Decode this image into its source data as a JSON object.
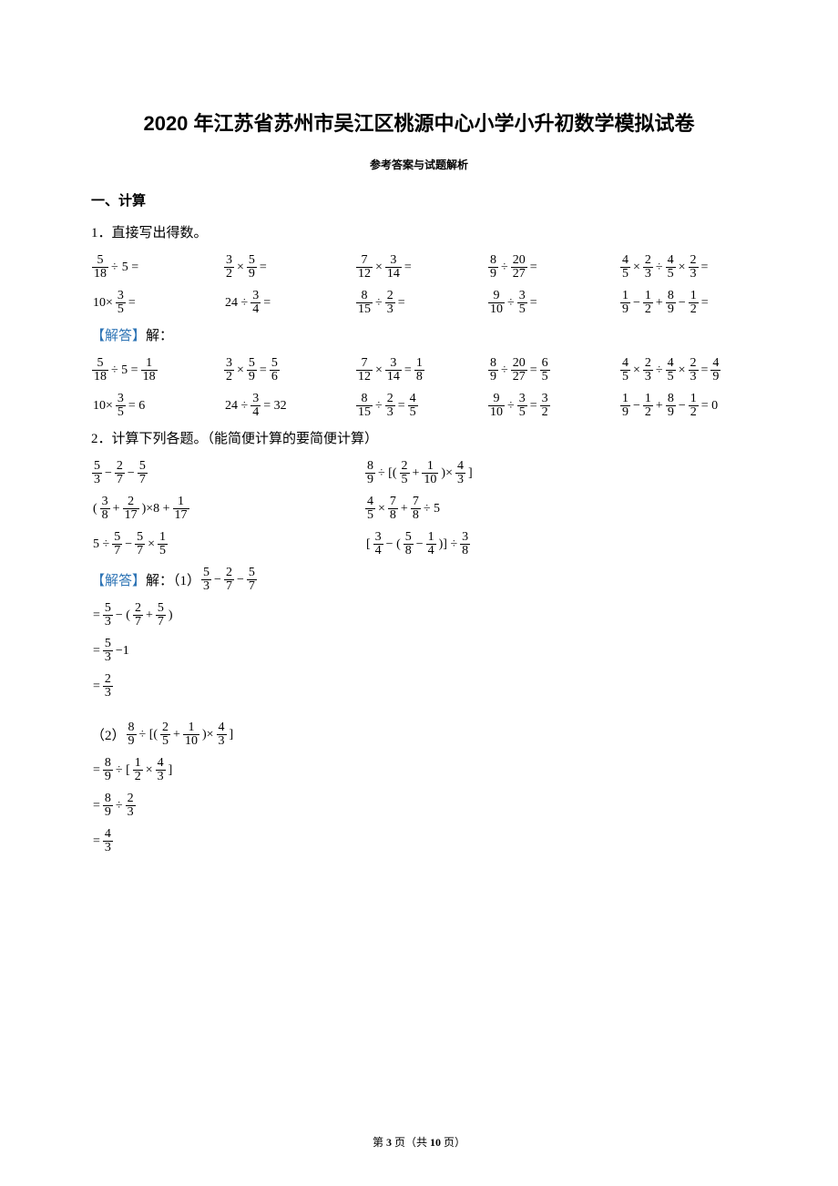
{
  "title": "2020 年江苏省苏州市吴江区桃源中心小学小升初数学模拟试卷",
  "subtitle": "参考答案与试题解析",
  "section1_header": "一、计算",
  "q1_text": "1．直接写出得数。",
  "q1_problems_row1": [
    [
      {
        "f": [
          5,
          18
        ]
      },
      {
        "t": "÷"
      },
      {
        "t": "5 ="
      }
    ],
    [
      {
        "f": [
          3,
          2
        ]
      },
      {
        "t": "×"
      },
      {
        "f": [
          5,
          9
        ]
      },
      {
        "t": "="
      }
    ],
    [
      {
        "f": [
          7,
          12
        ]
      },
      {
        "t": "×"
      },
      {
        "f": [
          3,
          14
        ]
      },
      {
        "t": "="
      }
    ],
    [
      {
        "f": [
          8,
          9
        ]
      },
      {
        "t": "÷"
      },
      {
        "f": [
          20,
          27
        ]
      },
      {
        "t": "="
      }
    ],
    [
      {
        "f": [
          4,
          5
        ]
      },
      {
        "t": "×"
      },
      {
        "f": [
          2,
          3
        ]
      },
      {
        "t": "÷"
      },
      {
        "f": [
          4,
          5
        ]
      },
      {
        "t": "×"
      },
      {
        "f": [
          2,
          3
        ]
      },
      {
        "t": "="
      }
    ]
  ],
  "q1_problems_row2": [
    [
      {
        "t": "10×"
      },
      {
        "f": [
          3,
          5
        ]
      },
      {
        "t": "="
      }
    ],
    [
      {
        "t": "24 ÷"
      },
      {
        "f": [
          3,
          4
        ]
      },
      {
        "t": "="
      }
    ],
    [
      {
        "f": [
          8,
          15
        ]
      },
      {
        "t": "÷"
      },
      {
        "f": [
          2,
          3
        ]
      },
      {
        "t": "="
      }
    ],
    [
      {
        "f": [
          9,
          10
        ]
      },
      {
        "t": "÷"
      },
      {
        "f": [
          3,
          5
        ]
      },
      {
        "t": "="
      }
    ],
    [
      {
        "f": [
          1,
          9
        ]
      },
      {
        "t": "−"
      },
      {
        "f": [
          1,
          2
        ]
      },
      {
        "t": "+"
      },
      {
        "f": [
          8,
          9
        ]
      },
      {
        "t": "−"
      },
      {
        "f": [
          1,
          2
        ]
      },
      {
        "t": "="
      }
    ]
  ],
  "answer_label": "【解答】",
  "answer_text": "解：",
  "q1_answers_row1": [
    [
      {
        "f": [
          5,
          18
        ]
      },
      {
        "t": "÷ 5 ="
      },
      {
        "f": [
          1,
          18
        ]
      }
    ],
    [
      {
        "f": [
          3,
          2
        ]
      },
      {
        "t": "×"
      },
      {
        "f": [
          5,
          9
        ]
      },
      {
        "t": "="
      },
      {
        "f": [
          5,
          6
        ]
      }
    ],
    [
      {
        "f": [
          7,
          12
        ]
      },
      {
        "t": "×"
      },
      {
        "f": [
          3,
          14
        ]
      },
      {
        "t": "="
      },
      {
        "f": [
          1,
          8
        ]
      }
    ],
    [
      {
        "f": [
          8,
          9
        ]
      },
      {
        "t": "÷"
      },
      {
        "f": [
          20,
          27
        ]
      },
      {
        "t": "="
      },
      {
        "f": [
          6,
          5
        ]
      }
    ],
    [
      {
        "f": [
          4,
          5
        ]
      },
      {
        "t": "×"
      },
      {
        "f": [
          2,
          3
        ]
      },
      {
        "t": "÷"
      },
      {
        "f": [
          4,
          5
        ]
      },
      {
        "t": "×"
      },
      {
        "f": [
          2,
          3
        ]
      },
      {
        "t": "="
      },
      {
        "f": [
          4,
          9
        ]
      }
    ]
  ],
  "q1_answers_row2": [
    [
      {
        "t": "10×"
      },
      {
        "f": [
          3,
          5
        ]
      },
      {
        "t": "= 6"
      }
    ],
    [
      {
        "t": "24 ÷"
      },
      {
        "f": [
          3,
          4
        ]
      },
      {
        "t": "= 32"
      }
    ],
    [
      {
        "f": [
          8,
          15
        ]
      },
      {
        "t": "÷"
      },
      {
        "f": [
          2,
          3
        ]
      },
      {
        "t": "="
      },
      {
        "f": [
          4,
          5
        ]
      }
    ],
    [
      {
        "f": [
          9,
          10
        ]
      },
      {
        "t": "÷"
      },
      {
        "f": [
          3,
          5
        ]
      },
      {
        "t": "="
      },
      {
        "f": [
          3,
          2
        ]
      }
    ],
    [
      {
        "f": [
          1,
          9
        ]
      },
      {
        "t": "−"
      },
      {
        "f": [
          1,
          2
        ]
      },
      {
        "t": "+"
      },
      {
        "f": [
          8,
          9
        ]
      },
      {
        "t": "−"
      },
      {
        "f": [
          1,
          2
        ]
      },
      {
        "t": "= 0"
      }
    ]
  ],
  "q2_text": "2．计算下列各题。（能简便计算的要简便计算）",
  "q2_problems_row1": [
    [
      {
        "f": [
          5,
          3
        ]
      },
      {
        "t": "−"
      },
      {
        "f": [
          2,
          7
        ]
      },
      {
        "t": "−"
      },
      {
        "f": [
          5,
          7
        ]
      }
    ],
    [
      {
        "f": [
          8,
          9
        ]
      },
      {
        "t": "÷ [("
      },
      {
        "f": [
          2,
          5
        ]
      },
      {
        "t": "+"
      },
      {
        "f": [
          1,
          10
        ]
      },
      {
        "t": ")×"
      },
      {
        "f": [
          4,
          3
        ]
      },
      {
        "t": "]"
      }
    ]
  ],
  "q2_problems_row2": [
    [
      {
        "t": "("
      },
      {
        "f": [
          3,
          8
        ]
      },
      {
        "t": "+"
      },
      {
        "f": [
          2,
          17
        ]
      },
      {
        "t": ")×8 +"
      },
      {
        "f": [
          1,
          17
        ]
      }
    ],
    [
      {
        "f": [
          4,
          5
        ]
      },
      {
        "t": "×"
      },
      {
        "f": [
          7,
          8
        ]
      },
      {
        "t": "+"
      },
      {
        "f": [
          7,
          8
        ]
      },
      {
        "t": "÷ 5"
      }
    ]
  ],
  "q2_problems_row3": [
    [
      {
        "t": "5 ÷"
      },
      {
        "f": [
          5,
          7
        ]
      },
      {
        "t": "−"
      },
      {
        "f": [
          5,
          7
        ]
      },
      {
        "t": "×"
      },
      {
        "f": [
          1,
          5
        ]
      }
    ],
    [
      {
        "t": "["
      },
      {
        "f": [
          3,
          4
        ]
      },
      {
        "t": "− ("
      },
      {
        "f": [
          5,
          8
        ]
      },
      {
        "t": "−"
      },
      {
        "f": [
          1,
          4
        ]
      },
      {
        "t": ")] ÷"
      },
      {
        "f": [
          3,
          8
        ]
      }
    ]
  ],
  "q2_solution1_header": "解：（1）",
  "q2_solution1_expr": [
    {
      "f": [
        5,
        3
      ]
    },
    {
      "t": "−"
    },
    {
      "f": [
        2,
        7
      ]
    },
    {
      "t": "−"
    },
    {
      "f": [
        5,
        7
      ]
    }
  ],
  "q2_solution1_steps": [
    [
      {
        "t": "="
      },
      {
        "f": [
          5,
          3
        ]
      },
      {
        "t": "− ("
      },
      {
        "f": [
          2,
          7
        ]
      },
      {
        "t": "+"
      },
      {
        "f": [
          5,
          7
        ]
      },
      {
        "t": ")"
      }
    ],
    [
      {
        "t": "="
      },
      {
        "f": [
          5,
          3
        ]
      },
      {
        "t": "−1"
      }
    ],
    [
      {
        "t": "="
      },
      {
        "f": [
          2,
          3
        ]
      }
    ]
  ],
  "q2_solution2_header": "（2）",
  "q2_solution2_expr": [
    {
      "f": [
        8,
        9
      ]
    },
    {
      "t": "÷ [("
    },
    {
      "f": [
        2,
        5
      ]
    },
    {
      "t": "+"
    },
    {
      "f": [
        1,
        10
      ]
    },
    {
      "t": ")×"
    },
    {
      "f": [
        4,
        3
      ]
    },
    {
      "t": "]"
    }
  ],
  "q2_solution2_steps": [
    [
      {
        "t": "="
      },
      {
        "f": [
          8,
          9
        ]
      },
      {
        "t": "÷ ["
      },
      {
        "f": [
          1,
          2
        ]
      },
      {
        "t": "×"
      },
      {
        "f": [
          4,
          3
        ]
      },
      {
        "t": "]"
      }
    ],
    [
      {
        "t": "="
      },
      {
        "f": [
          8,
          9
        ]
      },
      {
        "t": "÷"
      },
      {
        "f": [
          2,
          3
        ]
      }
    ],
    [
      {
        "t": "="
      },
      {
        "f": [
          4,
          3
        ]
      }
    ]
  ],
  "footer_prefix": "第 ",
  "footer_page": "3",
  "footer_mid": " 页（共 ",
  "footer_total": "10",
  "footer_suffix": " 页）"
}
